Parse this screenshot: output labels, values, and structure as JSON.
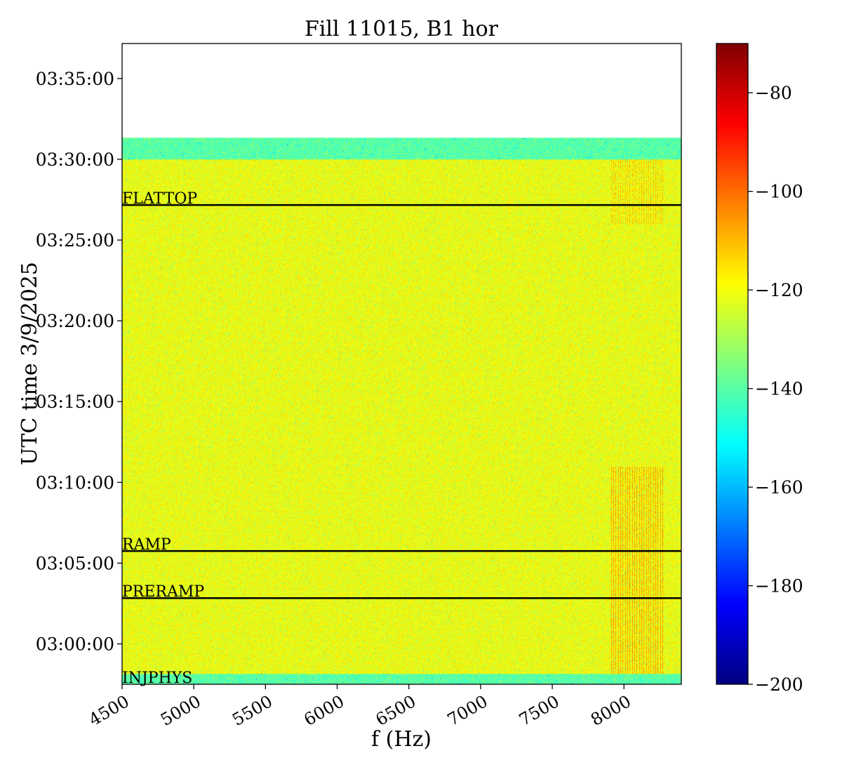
{
  "chart_data": {
    "type": "heatmap",
    "title": "Fill 11015, B1 hor",
    "xlabel": "f (Hz)",
    "ylabel": "UTC time 3/9/2025",
    "xlim": [
      4500,
      8400
    ],
    "ylim": [
      "02:57:30",
      "03:37:10"
    ],
    "x_ticks": [
      "4500",
      "5000",
      "5500",
      "6000",
      "6500",
      "7000",
      "7500",
      "8000"
    ],
    "y_ticks": [
      "03:00:00",
      "03:05:00",
      "03:10:00",
      "03:15:00",
      "03:20:00",
      "03:25:00",
      "03:30:00",
      "03:35:00"
    ],
    "colorbar": {
      "colormap": "jet",
      "range": [
        -200,
        -70
      ],
      "ticks": [
        "−80",
        "−100",
        "−120",
        "−140",
        "−160",
        "−180",
        "−200"
      ]
    },
    "data_extent": {
      "time_start": "02:57:30",
      "time_end": "03:31:20"
    },
    "markers": [
      {
        "label": "INJPHYS",
        "time": "02:57:30"
      },
      {
        "label": "PRERAMP",
        "time": "03:02:50"
      },
      {
        "label": "RAMP",
        "time": "03:05:45"
      },
      {
        "label": "FLATTOP",
        "time": "03:27:10"
      }
    ]
  }
}
